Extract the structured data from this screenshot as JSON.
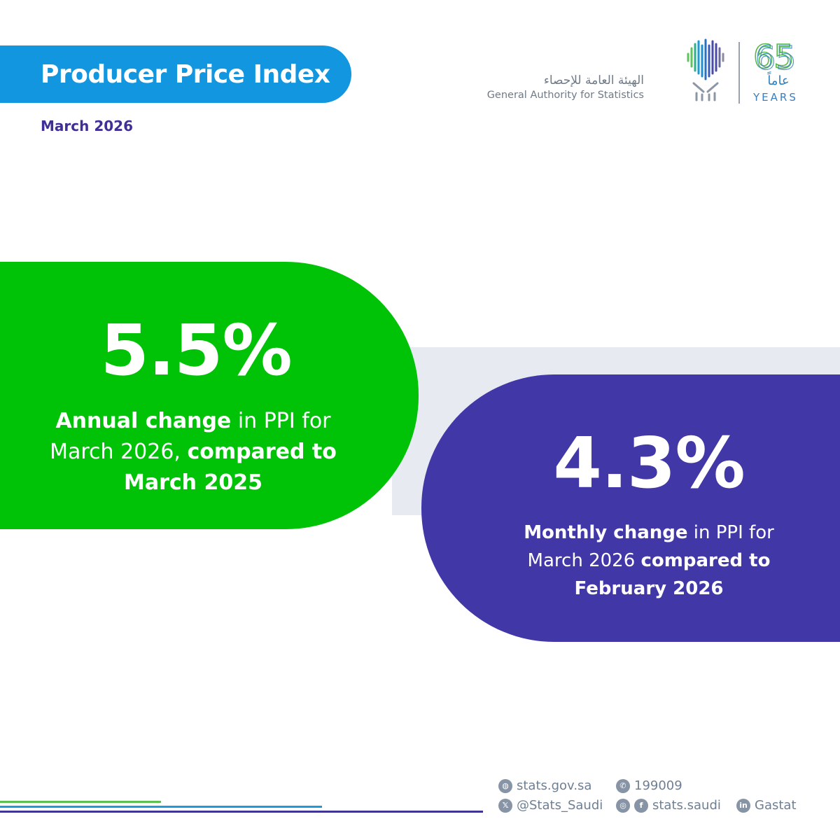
{
  "header": {
    "title": "Producer Price Index",
    "date": "March 2026"
  },
  "logo": {
    "arabic_name": "الهيئة العامة للإحصاء",
    "english_name": "General Authority for Statistics",
    "anniversary_number": "65",
    "anniversary_arabic": "عاماً",
    "anniversary_english": "YEARS"
  },
  "annual": {
    "value": "5.5%",
    "label_bold_1": "Annual change",
    "label_text_1": " in PPI for",
    "label_text_2": "March 2026, ",
    "label_bold_2": "compared to",
    "label_bold_3": "March 2025",
    "color": "#00c308"
  },
  "monthly": {
    "value": "4.3%",
    "label_bold_1": "Monthly change",
    "label_text_1": " in PPI for",
    "label_text_2": "March 2026 ",
    "label_bold_2": "compared to",
    "label_bold_3": "February 2026",
    "color": "#4137a7"
  },
  "footer": {
    "website": "stats.gov.sa",
    "phone": "199009",
    "x_handle": "@Stats_Saudi",
    "social_handle": "stats.saudi",
    "linkedin": "Gastat",
    "icons": [
      "globe-icon",
      "phone-icon",
      "x-icon",
      "instagram-icon",
      "facebook-icon",
      "linkedin-icon"
    ]
  }
}
